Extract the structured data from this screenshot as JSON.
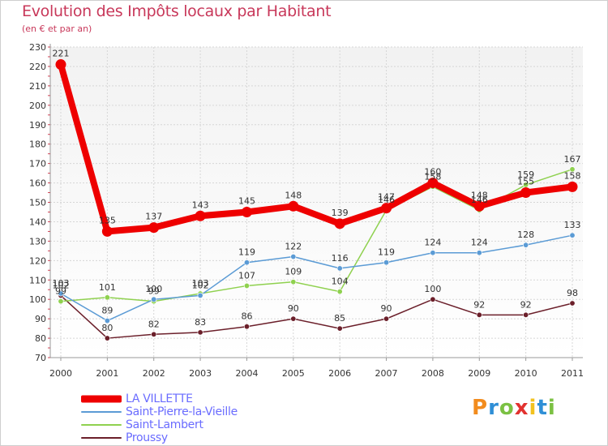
{
  "chart_data": {
    "type": "line",
    "title": "Evolution des Impôts locaux par Habitant",
    "subtitle": "(en € et par an)",
    "x": [
      "2000",
      "2001",
      "2002",
      "2003",
      "2004",
      "2005",
      "2006",
      "2007",
      "2008",
      "2009",
      "2010",
      "2011"
    ],
    "yticks": [
      "70",
      "80",
      "90",
      "100",
      "110",
      "120",
      "130",
      "140",
      "150",
      "160",
      "170",
      "180",
      "190",
      "200",
      "210",
      "220",
      "230"
    ],
    "ylim": [
      70,
      230
    ],
    "grid": true,
    "legend_position": "bottom-left",
    "series": [
      {
        "name": "LA VILLETTE",
        "color": "#ee0000",
        "values": [
          221,
          135,
          137,
          143,
          145,
          148,
          139,
          147,
          160,
          148,
          155,
          158
        ],
        "labels": [
          "221",
          "135",
          "137",
          "143",
          "145",
          "148",
          "139",
          "147",
          "160",
          "148",
          "155",
          "158"
        ]
      },
      {
        "name": "Saint-Pierre-la-Vieille",
        "color": "#5b9bd5",
        "values": [
          103,
          89,
          100,
          102,
          119,
          122,
          116,
          119,
          124,
          124,
          128,
          133
        ],
        "labels": [
          "103",
          "89",
          "100",
          "102",
          "119",
          "122",
          "116",
          "119",
          "124",
          "124",
          "128",
          "133"
        ]
      },
      {
        "name": "Saint-Lambert",
        "color": "#8fd14f",
        "values": [
          99,
          101,
          99,
          103,
          107,
          109,
          104,
          146,
          158,
          146,
          159,
          167
        ],
        "labels": [
          "99",
          "101",
          "99",
          "103",
          "107",
          "109",
          "104",
          "146",
          "158",
          "146",
          "159",
          "167"
        ]
      },
      {
        "name": "Proussy",
        "color": "#6b1f2a",
        "values": [
          102,
          80,
          82,
          83,
          86,
          90,
          85,
          90,
          100,
          92,
          92,
          98
        ],
        "labels": [
          "102",
          "80",
          "82",
          "83",
          "86",
          "90",
          "85",
          "90",
          "100",
          "92",
          "92",
          "98"
        ]
      }
    ]
  },
  "logo": {
    "text": [
      "P",
      "r",
      "o",
      "x",
      "i",
      "t",
      "i"
    ]
  }
}
